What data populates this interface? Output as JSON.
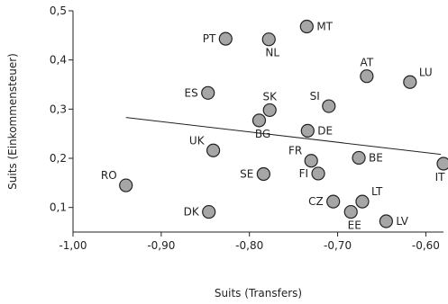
{
  "chart_data": {
    "type": "scatter",
    "xlabel": "Suits (Transfers)",
    "ylabel": "Suits (Einkommensteuer)",
    "xlim": [
      -1.0,
      -0.58
    ],
    "ylim": [
      0.05,
      0.5
    ],
    "x_ticks": [
      -1.0,
      -0.9,
      -0.8,
      -0.7,
      -0.6
    ],
    "x_tick_labels": [
      "-1,00",
      "-0,90",
      "-0,80",
      "-0,70",
      "-0,60"
    ],
    "y_ticks": [
      0.1,
      0.2,
      0.3,
      0.4,
      0.5
    ],
    "y_tick_labels": [
      "0,1",
      "0,2",
      "0,3",
      "0,4",
      "0,5"
    ],
    "grid": false,
    "trendline": {
      "x": [
        -0.94,
        -0.583
      ],
      "y": [
        0.283,
        0.208
      ]
    },
    "points": [
      {
        "label": "PT",
        "x": -0.827,
        "y": 0.443,
        "label_pos": "left"
      },
      {
        "label": "NL",
        "x": -0.778,
        "y": 0.442,
        "label_pos": "below-right"
      },
      {
        "label": "MT",
        "x": -0.735,
        "y": 0.468,
        "label_pos": "right"
      },
      {
        "label": "AT",
        "x": -0.667,
        "y": 0.367,
        "label_pos": "above"
      },
      {
        "label": "LU",
        "x": -0.618,
        "y": 0.355,
        "label_pos": "above-right"
      },
      {
        "label": "ES",
        "x": -0.847,
        "y": 0.333,
        "label_pos": "left"
      },
      {
        "label": "SK",
        "x": -0.777,
        "y": 0.298,
        "label_pos": "above"
      },
      {
        "label": "SI",
        "x": -0.71,
        "y": 0.306,
        "label_pos": "above-left"
      },
      {
        "label": "BG",
        "x": -0.789,
        "y": 0.277,
        "label_pos": "below-right"
      },
      {
        "label": "DE",
        "x": -0.734,
        "y": 0.256,
        "label_pos": "right"
      },
      {
        "label": "UK",
        "x": -0.841,
        "y": 0.216,
        "label_pos": "above-left"
      },
      {
        "label": "FR",
        "x": -0.73,
        "y": 0.195,
        "label_pos": "above-left"
      },
      {
        "label": "BE",
        "x": -0.676,
        "y": 0.201,
        "label_pos": "right"
      },
      {
        "label": "IT",
        "x": -0.58,
        "y": 0.189,
        "label_pos": "below-left"
      },
      {
        "label": "FI",
        "x": -0.722,
        "y": 0.169,
        "label_pos": "left"
      },
      {
        "label": "SE",
        "x": -0.784,
        "y": 0.168,
        "label_pos": "left"
      },
      {
        "label": "RO",
        "x": -0.94,
        "y": 0.145,
        "label_pos": "above-left"
      },
      {
        "label": "CZ",
        "x": -0.705,
        "y": 0.112,
        "label_pos": "left"
      },
      {
        "label": "LT",
        "x": -0.672,
        "y": 0.112,
        "label_pos": "above-right"
      },
      {
        "label": "DK",
        "x": -0.846,
        "y": 0.091,
        "label_pos": "left"
      },
      {
        "label": "EE",
        "x": -0.685,
        "y": 0.091,
        "label_pos": "below-right"
      },
      {
        "label": "LV",
        "x": -0.645,
        "y": 0.072,
        "label_pos": "right"
      }
    ]
  }
}
